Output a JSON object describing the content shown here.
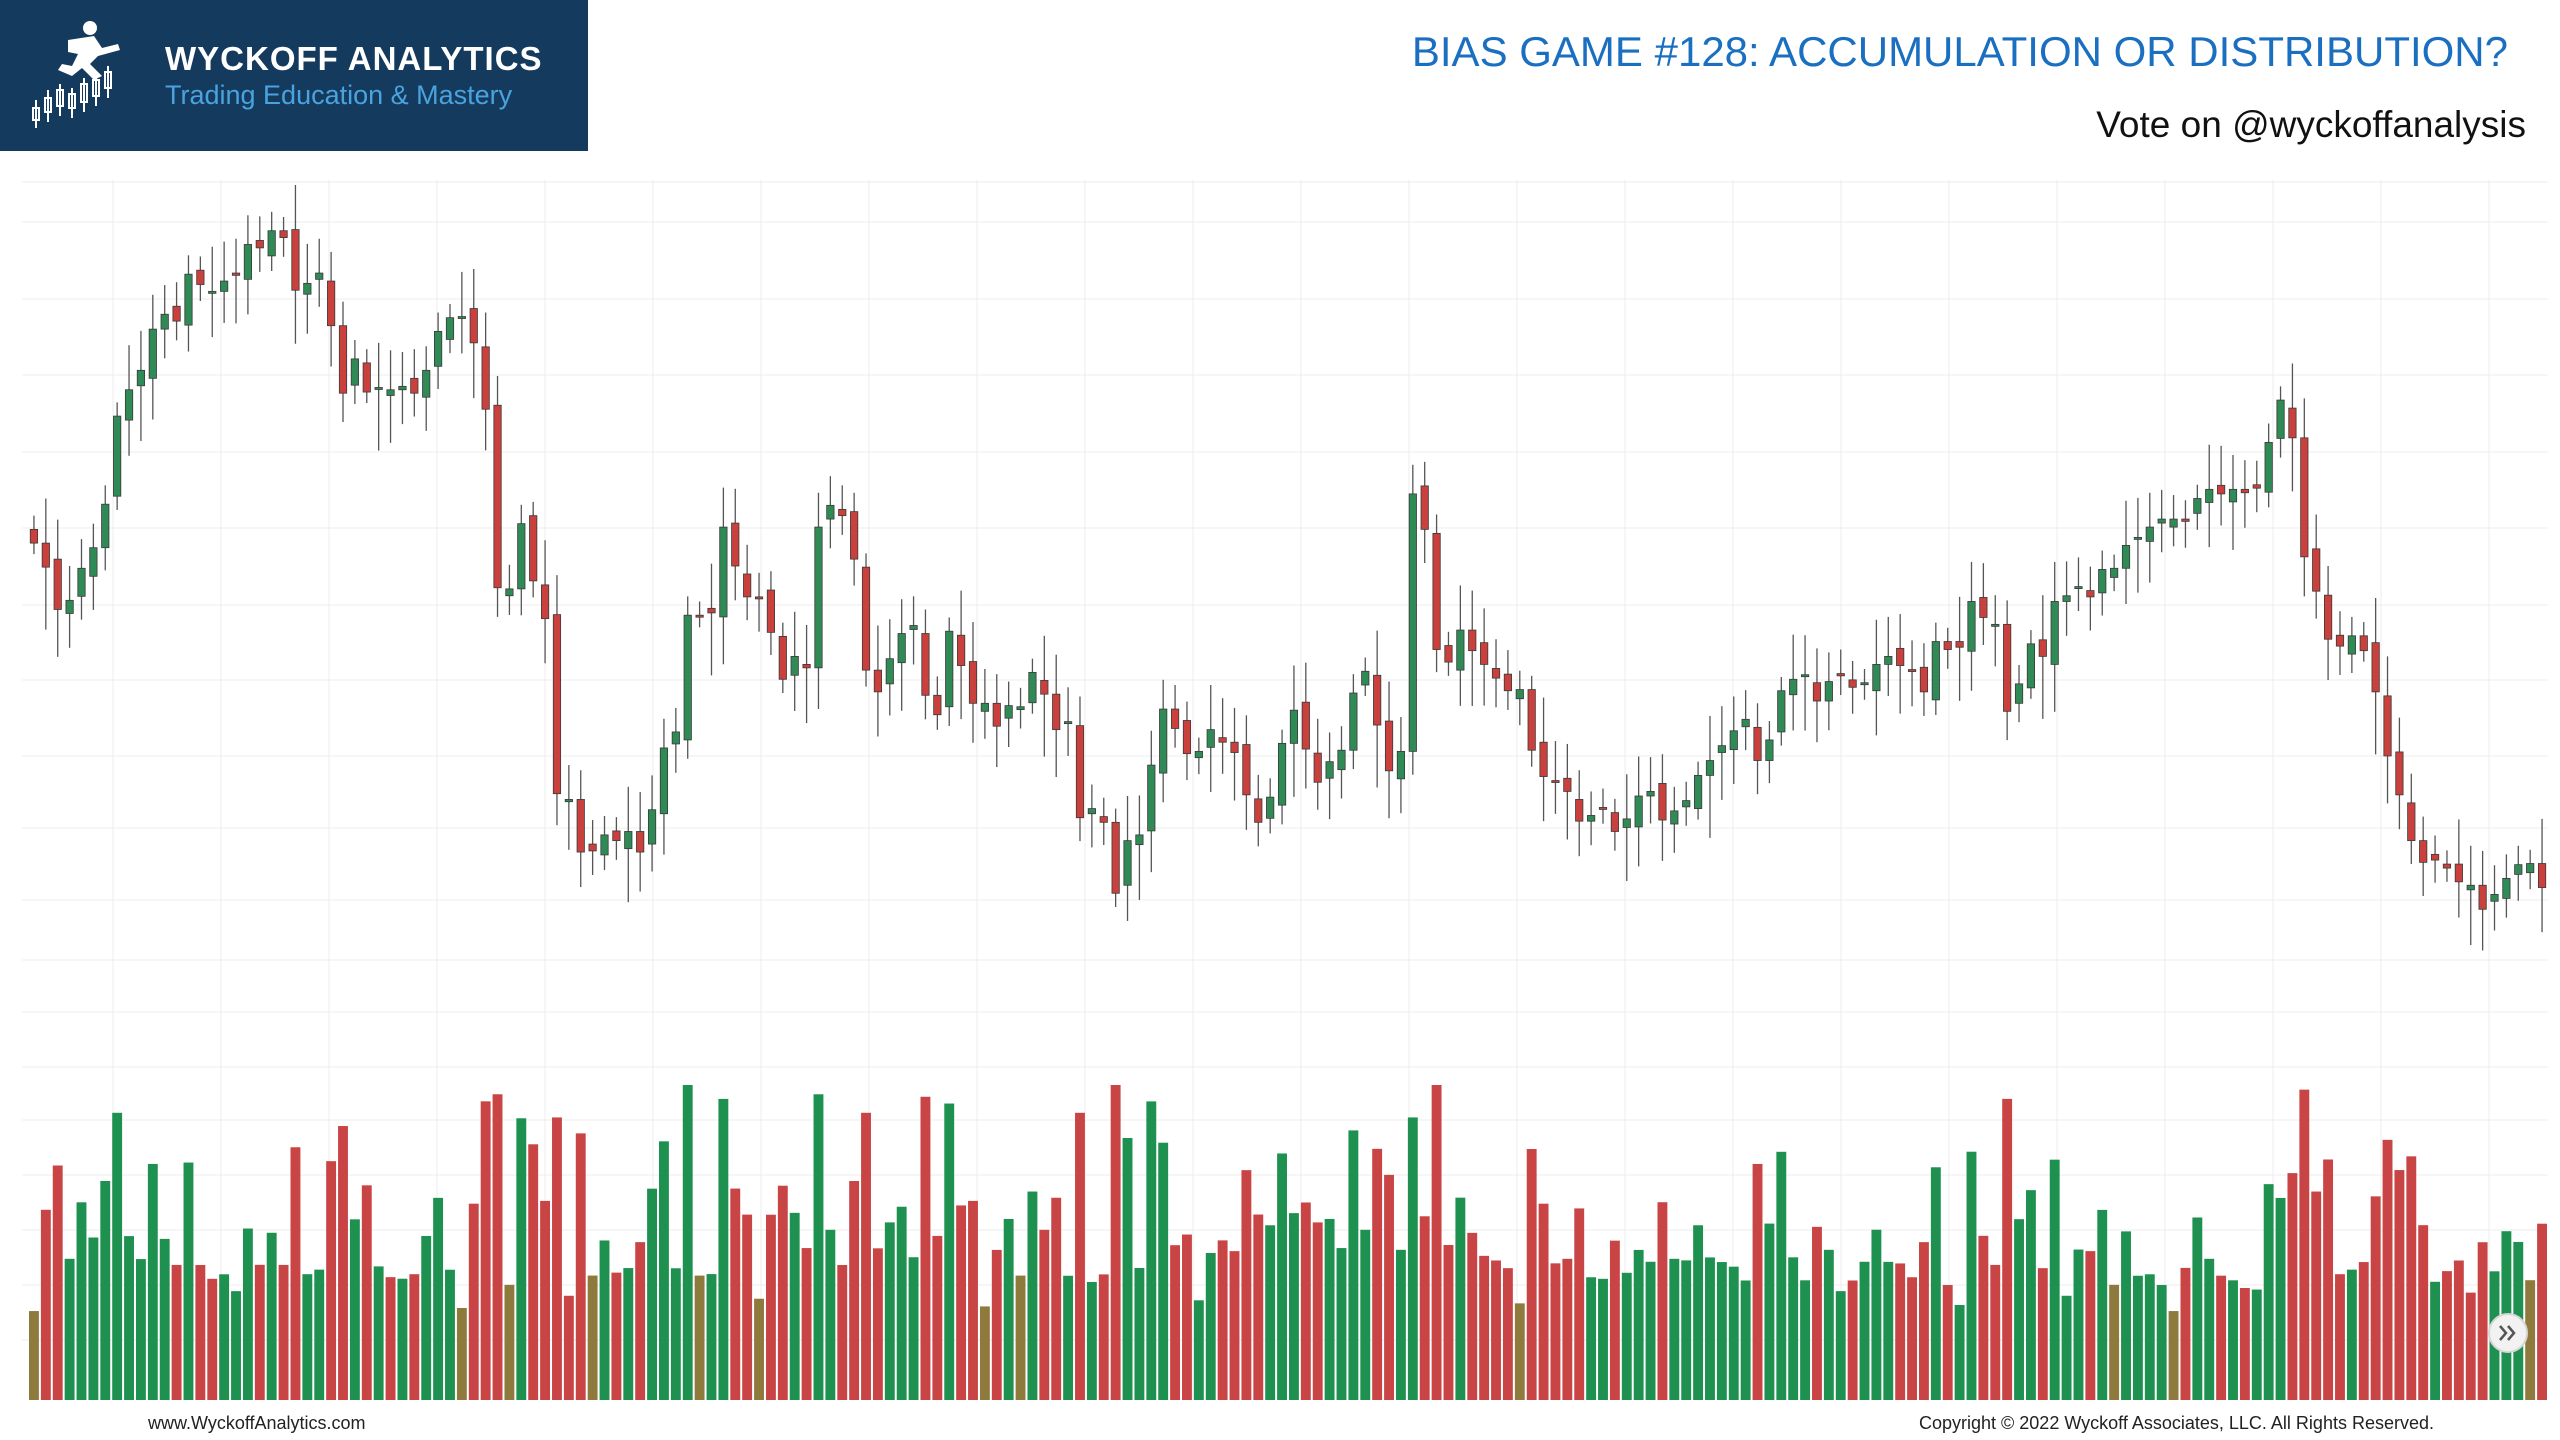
{
  "header": {
    "brand_name": "WYCKOFF ANALYTICS",
    "brand_tagline": "Trading Education & Mastery",
    "title": "BIAS GAME #128: ACCUMULATION OR DISTRIBUTION?",
    "subtitle": "Vote on @wyckoffanalysis"
  },
  "footer": {
    "website": "www.WyckoffAnalytics.com",
    "copyright": "Copyright © 2022 Wyckoff Associates, LLC. All Rights Reserved."
  },
  "colors": {
    "up": "#2f8a56",
    "down": "#c9403d",
    "volume_up": "#1e9150",
    "volume_down": "#c94545",
    "volume_flat": "#8f7a3d",
    "grid": "#ececec",
    "brand_bg": "#143a5e",
    "title_blue": "#1a6fc0"
  },
  "chart_data": {
    "type": "candlestick",
    "description_note": "",
    "price_closes": [
      126.5,
      124.4,
      120.7,
      121.5,
      124.3,
      126.1,
      129.9,
      137.6,
      139.9,
      141.6,
      145.2,
      146.5,
      145.9,
      150,
      149.1,
      148.5,
      149.4,
      149.9,
      152.6,
      152.3,
      153.8,
      153.2,
      148.6,
      149.2,
      150.1,
      145.5,
      139.6,
      142.6,
      139.7,
      140.1,
      139.9,
      140.2,
      139.6,
      141.6,
      145,
      146.2,
      146.3,
      144,
      138.2,
      122.6,
      122.5,
      128.2,
      123.2,
      119.9,
      104.6,
      104.1,
      99.5,
      99.6,
      101,
      100.5,
      101.3,
      99.5,
      103.2,
      108.6,
      110,
      120.2,
      120.1,
      120.4,
      127.9,
      124.5,
      121.8,
      121.7,
      118.7,
      114.6,
      116.6,
      115.6,
      127.9,
      129.8,
      128.9,
      125.1,
      115.4,
      113.5,
      116.4,
      118.6,
      119.3,
      113.2,
      111.5,
      118.8,
      115.8,
      112.5,
      112.5,
      110.5,
      112.3,
      112.2,
      115.2,
      113.3,
      110.2,
      110.9,
      102.5,
      103.3,
      102.1,
      95.9,
      100.5,
      101,
      107.1,
      112,
      110.3,
      108.1,
      108.3,
      110.2,
      109.1,
      108.2,
      104.5,
      102.1,
      104.3,
      109,
      111.9,
      108.5,
      105.6,
      107.4,
      108.4,
      113.4,
      115.3,
      110.6,
      106.6,
      108.3,
      130.8,
      127.7,
      117.2,
      116.1,
      118.9,
      117.1,
      115.9,
      114.7,
      113.6,
      113.7,
      108.4,
      106.1,
      105.6,
      104.8,
      102.2,
      102.7,
      103.3,
      101.3,
      102.4,
      104.4,
      104.8,
      102.3,
      103.1,
      104,
      106.2,
      107.5,
      108.8,
      110.1,
      111.1,
      107.5,
      109.3,
      113.6,
      114.6,
      115,
      112.7,
      114.4,
      114.9,
      113.9,
      114.3,
      115.9,
      116.6,
      115.8,
      115.3,
      113.5,
      117.9,
      117.2,
      117.4,
      121.4,
      120,
      119.4,
      111.8,
      114.2,
      117.7,
      116.6,
      121.4,
      121.9,
      122.7,
      121.8,
      124.2,
      124.3,
      126.3,
      127,
      127.9,
      128.6,
      128.6,
      128.4,
      130.4,
      131.2,
      130.8,
      131.2,
      130.9,
      131.3,
      135.3,
      139,
      135.7,
      125.3,
      122.3,
      118.1,
      117.5,
      118.4,
      117.1,
      113.5,
      107.9,
      104.5,
      100.5,
      98.6,
      98.8,
      98.1,
      96.9,
      96.6,
      94.5,
      95.8,
      97.2,
      98.4,
      98.5,
      96.4
    ]
  }
}
